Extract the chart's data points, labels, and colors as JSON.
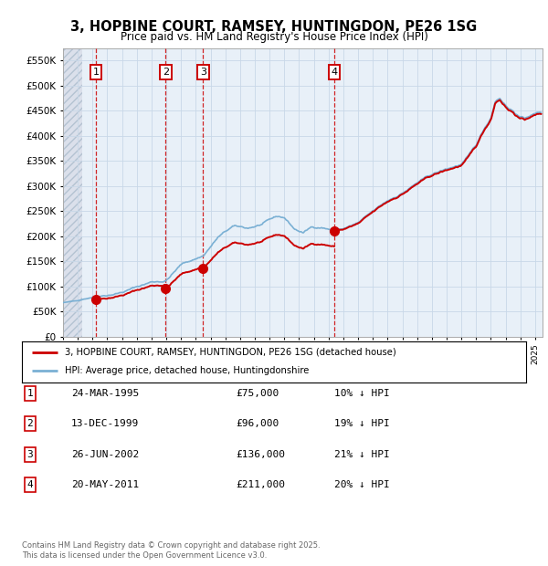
{
  "title": "3, HOPBINE COURT, RAMSEY, HUNTINGDON, PE26 1SG",
  "subtitle": "Price paid vs. HM Land Registry's House Price Index (HPI)",
  "ylim": [
    0,
    575000
  ],
  "yticks": [
    0,
    50000,
    100000,
    150000,
    200000,
    250000,
    300000,
    350000,
    400000,
    450000,
    500000,
    550000
  ],
  "ytick_labels": [
    "£0",
    "£50K",
    "£100K",
    "£150K",
    "£200K",
    "£250K",
    "£300K",
    "£350K",
    "£400K",
    "£450K",
    "£500K",
    "£550K"
  ],
  "xlim_start": 1993.0,
  "xlim_end": 2025.5,
  "sale_year_floats": [
    1995.23,
    1999.95,
    2002.49,
    2011.38
  ],
  "sale_prices": [
    75000,
    96000,
    136000,
    211000
  ],
  "sale_labels": [
    "1",
    "2",
    "3",
    "4"
  ],
  "legend_entries": [
    "3, HOPBINE COURT, RAMSEY, HUNTINGDON, PE26 1SG (detached house)",
    "HPI: Average price, detached house, Huntingdonshire"
  ],
  "legend_colors": [
    "#cc0000",
    "#7ab0d4"
  ],
  "table_rows": [
    [
      "1",
      "24-MAR-1995",
      "£75,000",
      "10% ↓ HPI"
    ],
    [
      "2",
      "13-DEC-1999",
      "£96,000",
      "19% ↓ HPI"
    ],
    [
      "3",
      "26-JUN-2002",
      "£136,000",
      "21% ↓ HPI"
    ],
    [
      "4",
      "20-MAY-2011",
      "£211,000",
      "20% ↓ HPI"
    ]
  ],
  "footer": "Contains HM Land Registry data © Crown copyright and database right 2025.\nThis data is licensed under the Open Government Licence v3.0.",
  "hpi_line_color": "#7ab0d4",
  "price_line_color": "#cc0000",
  "dashed_line_color": "#cc0000",
  "grid_color": "#c8d8e8",
  "bg_color": "#e8f0f8",
  "hatch_x_end": 1994.3
}
